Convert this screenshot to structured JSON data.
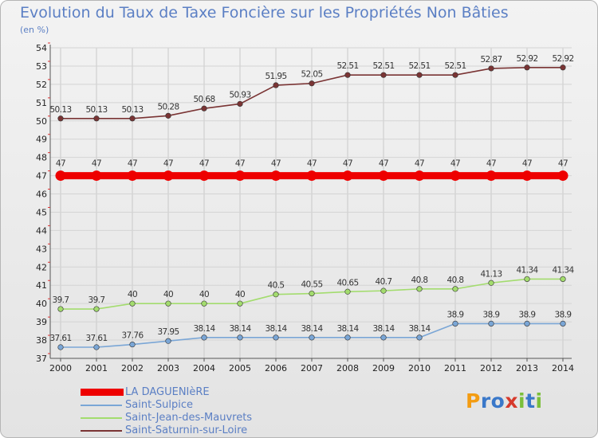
{
  "header": {
    "title": "Evolution du Taux de Taxe Foncière sur les Propriétés Non Bâties",
    "unit": "(en %)"
  },
  "logo": {
    "letters": [
      "P",
      "r",
      "o",
      "x",
      "i",
      "t",
      "i"
    ],
    "colors": [
      "#f39c12",
      "#3a78c9",
      "#3a78c9",
      "#d63a2c",
      "#7bbf3a",
      "#3a78c9",
      "#7bbf3a"
    ]
  },
  "chart_data": {
    "type": "line",
    "title": "Evolution du Taux de Taxe Foncière sur les Propriétés Non Bâties",
    "ylabel": "(en %)",
    "xlabel": "",
    "x": [
      2000,
      2001,
      2002,
      2003,
      2004,
      2005,
      2006,
      2007,
      2008,
      2009,
      2010,
      2011,
      2012,
      2013,
      2014
    ],
    "ylim": [
      37,
      54
    ],
    "yticks": [
      37,
      38,
      39,
      40,
      41,
      42,
      43,
      44,
      45,
      46,
      47,
      48,
      49,
      50,
      51,
      52,
      53,
      54
    ],
    "series": [
      {
        "name": "LA DAGUENIèRE",
        "color": "#ee0000",
        "values": [
          47,
          47,
          47,
          47,
          47,
          47,
          47,
          47,
          47,
          47,
          47,
          47,
          47,
          47,
          47
        ],
        "labels": [
          "47",
          "47",
          "47",
          "47",
          "47",
          "47",
          "47",
          "47",
          "47",
          "47",
          "47",
          "47",
          "47",
          "47",
          "47"
        ]
      },
      {
        "name": "Saint-Sulpice",
        "color": "#7aa6d6",
        "values": [
          37.61,
          37.61,
          37.76,
          37.95,
          38.14,
          38.14,
          38.14,
          38.14,
          38.14,
          38.14,
          38.14,
          38.9,
          38.9,
          38.9,
          38.9
        ],
        "labels": [
          "37.61",
          "37.61",
          "37.76",
          "37.95",
          "38.14",
          "38.14",
          "38.14",
          "38.14",
          "38.14",
          "38.14",
          "38.14",
          "38.9",
          "38.9",
          "38.9",
          "38.9"
        ]
      },
      {
        "name": "Saint-Jean-des-Mauvrets",
        "color": "#a3dc6e",
        "values": [
          39.7,
          39.7,
          40,
          40,
          40,
          40,
          40.5,
          40.55,
          40.65,
          40.7,
          40.8,
          40.8,
          41.13,
          41.34,
          41.34
        ],
        "labels": [
          "39.7",
          "39.7",
          "40",
          "40",
          "40",
          "40",
          "40.5",
          "40.55",
          "40.65",
          "40.7",
          "40.8",
          "40.8",
          "41.13",
          "41.34",
          "41.34"
        ]
      },
      {
        "name": "Saint-Saturnin-sur-Loire",
        "color": "#7a3434",
        "values": [
          50.13,
          50.13,
          50.13,
          50.28,
          50.68,
          50.93,
          51.95,
          52.05,
          52.51,
          52.51,
          52.51,
          52.51,
          52.87,
          52.92,
          52.92
        ],
        "labels": [
          "50.13",
          "50.13",
          "50.13",
          "50.28",
          "50.68",
          "50.93",
          "51.95",
          "52.05",
          "52.51",
          "52.51",
          "52.51",
          "52.51",
          "52.87",
          "52.92",
          "52.92"
        ]
      }
    ]
  }
}
